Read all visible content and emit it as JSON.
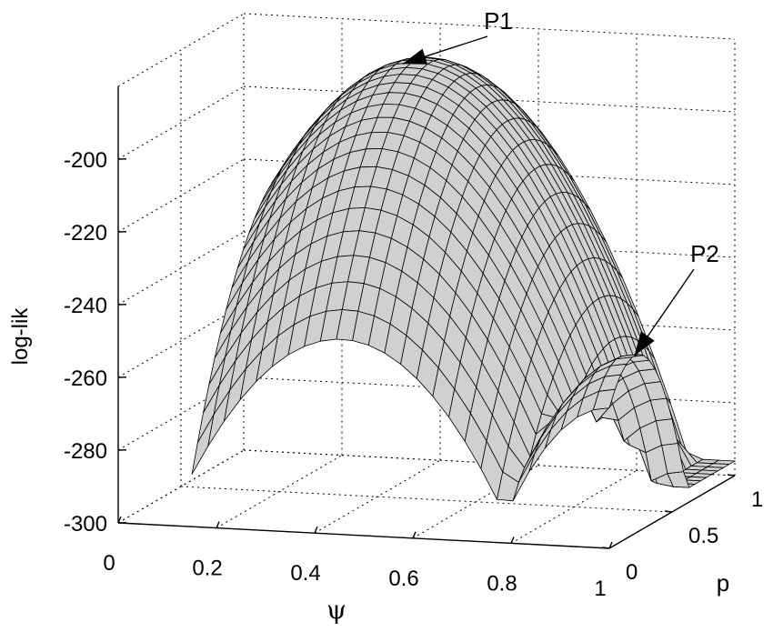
{
  "chart_data": {
    "type": "surface",
    "zlabel": "log-lik",
    "xlabel": "ψ",
    "ylabel": "p",
    "xlim": [
      0,
      1
    ],
    "ylim": [
      0,
      1
    ],
    "zlim": [
      -300,
      -180
    ],
    "x_ticks": [
      "0",
      "0.2",
      "0.4",
      "0.6",
      "0.8",
      "1"
    ],
    "y_ticks": [
      "0",
      "0.5",
      "1"
    ],
    "z_ticks": [
      "-200",
      "-220",
      "-240",
      "-260",
      "-280",
      "-300"
    ],
    "grid": true,
    "surface_color": "#d0d0d0",
    "mesh_color": "#000000",
    "annotations": [
      {
        "label": "P1",
        "psi": 0.4,
        "p": 0.7,
        "loglik": -185
      },
      {
        "label": "P2",
        "psi": 1.0,
        "p": 0.2,
        "loglik": -251
      }
    ]
  }
}
